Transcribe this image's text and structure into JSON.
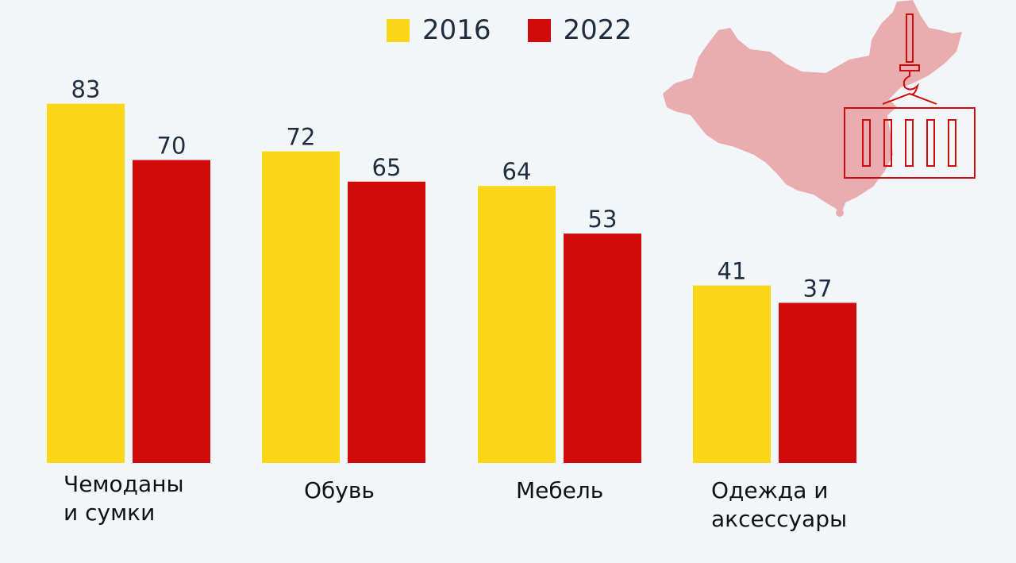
{
  "legend": [
    {
      "label": "2016",
      "color": "#fad616"
    },
    {
      "label": "2022",
      "color": "#d10b0b"
    }
  ],
  "chart_data": {
    "type": "bar",
    "title": "",
    "xlabel": "",
    "ylabel": "",
    "ylim": [
      0,
      90
    ],
    "grid": false,
    "legend_position": "top-center",
    "categories": [
      "Чемоданы\nи сумки",
      "Обувь",
      "Мебель",
      "Одежда и\nаксессуары"
    ],
    "series": [
      {
        "name": "2016",
        "color": "#fad616",
        "values": [
          83,
          72,
          64,
          41
        ]
      },
      {
        "name": "2022",
        "color": "#d10b0b",
        "values": [
          70,
          65,
          53,
          37
        ]
      }
    ]
  },
  "icons": {
    "map": "china-map-icon",
    "container": "shipping-container-crane-icon"
  },
  "colors": {
    "map_fill": "#e8acaf",
    "icon_stroke": "#d10b0b",
    "label_text": "#1e2d40"
  }
}
